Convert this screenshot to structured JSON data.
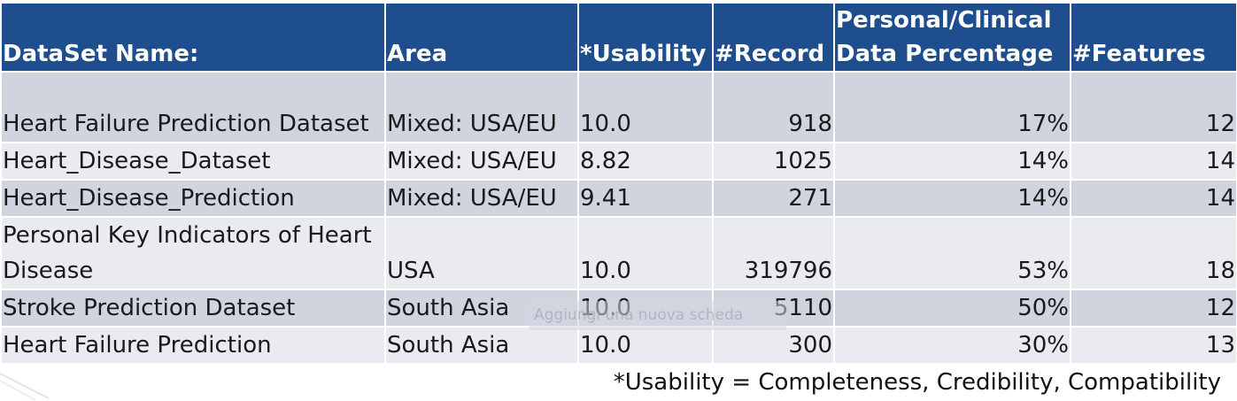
{
  "table": {
    "headers": [
      "DataSet Name:",
      "Area",
      "*Usability",
      "#Record",
      "Personal/Clinical Data Percentage",
      "#Features"
    ],
    "rows": [
      [
        "Heart Failure Prediction Dataset",
        "Mixed: USA/EU",
        "10.0",
        "918",
        "17%",
        "12"
      ],
      [
        "Heart_Disease_Dataset",
        "Mixed: USA/EU",
        "8.82",
        "1025",
        "14%",
        "14"
      ],
      [
        "Heart_Disease_Prediction",
        "Mixed: USA/EU",
        "9.41",
        "271",
        "14%",
        "14"
      ],
      [
        "Personal Key Indicators of Heart Disease",
        "USA",
        "10.0",
        "319796",
        "53%",
        "18"
      ],
      [
        "Stroke Prediction Dataset",
        "South Asia",
        "10.0",
        "5110",
        "50%",
        "12"
      ],
      [
        "Heart Failure Prediction",
        "South Asia",
        "10.0",
        "300",
        "30%",
        "13"
      ]
    ]
  },
  "footnote": "*Usability = Completeness, Credibility, Compatibility",
  "watermark": "Aggiungi una nuova scheda",
  "colors": {
    "header_bg": "#1f4e8f",
    "row_dark": "#cfd4df",
    "row_light": "#e9ebf0"
  }
}
